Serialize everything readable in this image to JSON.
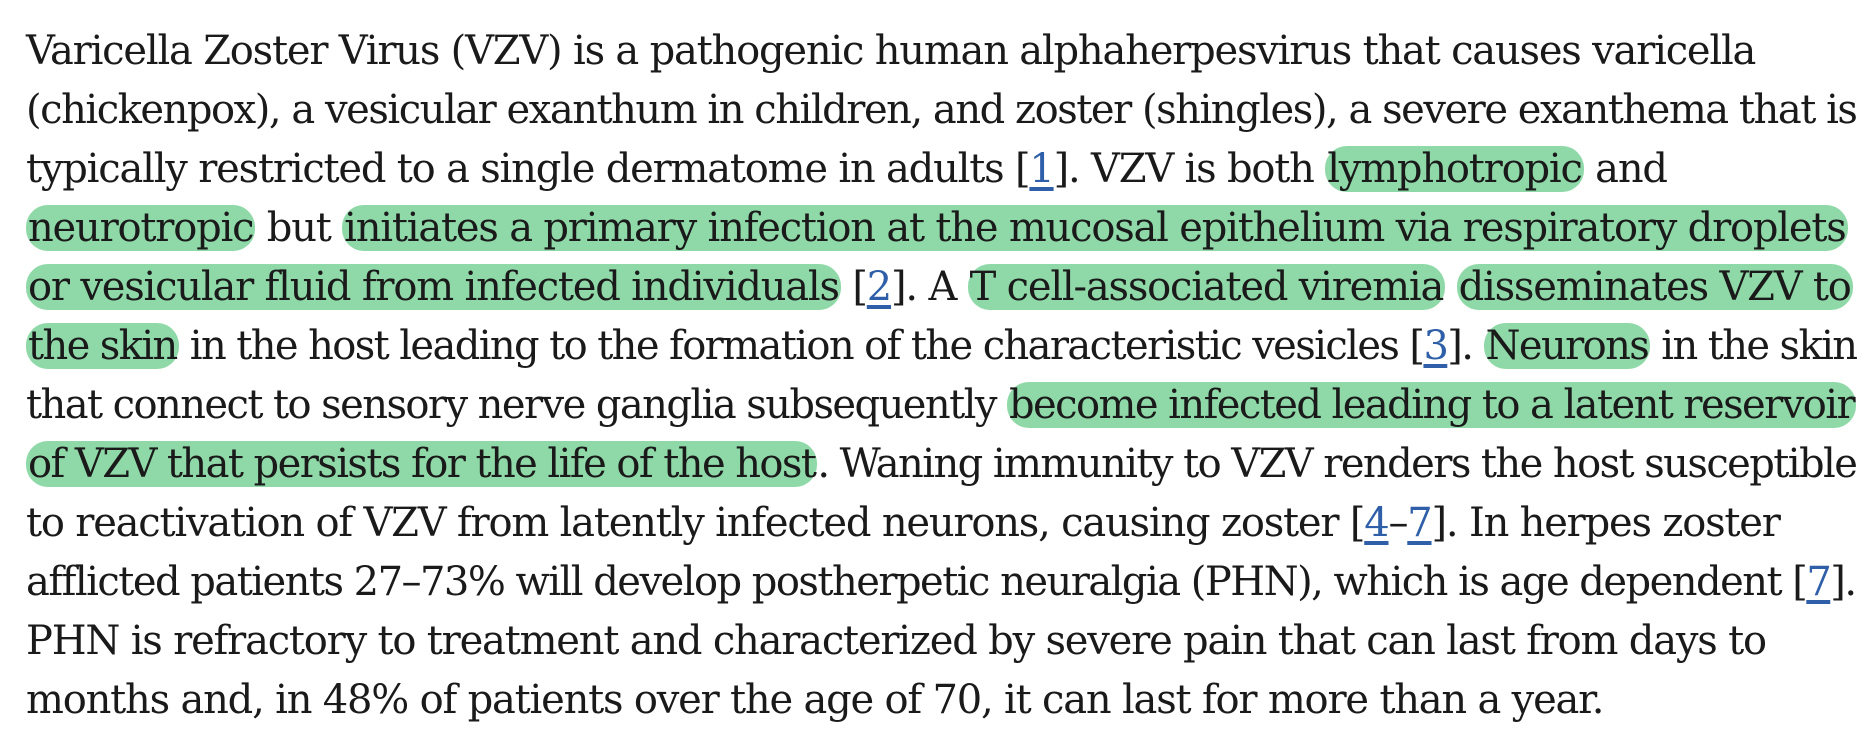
{
  "highlight_color": "#8fd9a8",
  "link_color": "#2e5fa8",
  "lines": [
    [
      {
        "t": "Varicella Zoster Virus (VZV) is a pathogenic human alphaherpesvirus that causes varicella"
      }
    ],
    [
      {
        "t": "(chickenpox), a vesicular exanthum in children, and zoster (shingles), a severe exanthema that is"
      }
    ],
    [
      {
        "t": "typically restricted to a single dermatome in adults ["
      },
      {
        "t": "1",
        "ref": true
      },
      {
        "t": "]. VZV is both "
      },
      {
        "t": "lymphotropic",
        "hl": true
      },
      {
        "t": " and"
      }
    ],
    [
      {
        "t": "neurotropic",
        "hl": true
      },
      {
        "t": " but "
      },
      {
        "t": "initiates a primary infection at the mucosal epithelium via respiratory droplets",
        "hl": true
      }
    ],
    [
      {
        "t": "or vesicular fluid from infected individuals",
        "hl": true
      },
      {
        "t": " ["
      },
      {
        "t": "2",
        "ref": true
      },
      {
        "t": "]. A "
      },
      {
        "t": "T cell-associated viremia",
        "hl": true
      },
      {
        "t": " "
      },
      {
        "t": "disseminates VZV to",
        "hl": true
      }
    ],
    [
      {
        "t": "the skin",
        "hl": true
      },
      {
        "t": " in the host leading to the formation of the characteristic vesicles ["
      },
      {
        "t": "3",
        "ref": true
      },
      {
        "t": "]. "
      },
      {
        "t": "Neurons",
        "hl": true
      },
      {
        "t": " in the skin"
      }
    ],
    [
      {
        "t": "that connect to sensory nerve ganglia subsequently "
      },
      {
        "t": "become infected leading to a latent reservoir",
        "hl": true
      }
    ],
    [
      {
        "t": "of VZV that persists for the life of the host",
        "hl": true
      },
      {
        "t": ". Waning immunity to VZV renders the host susceptible"
      }
    ],
    [
      {
        "t": "to reactivation of VZV from latently infected neurons, causing zoster ["
      },
      {
        "t": "4",
        "ref": true
      },
      {
        "t": "–"
      },
      {
        "t": "7",
        "ref": true
      },
      {
        "t": "]. In herpes zoster"
      }
    ],
    [
      {
        "t": "afflicted patients 27–73% will develop postherpetic neuralgia (PHN), which is age dependent ["
      },
      {
        "t": "7",
        "ref": true
      },
      {
        "t": "]."
      }
    ],
    [
      {
        "t": "PHN is refractory to treatment and characterized by severe pain that can last from days to"
      }
    ],
    [
      {
        "t": "months and, in 48% of patients over the age of 70, it can last for more than a year."
      }
    ]
  ]
}
